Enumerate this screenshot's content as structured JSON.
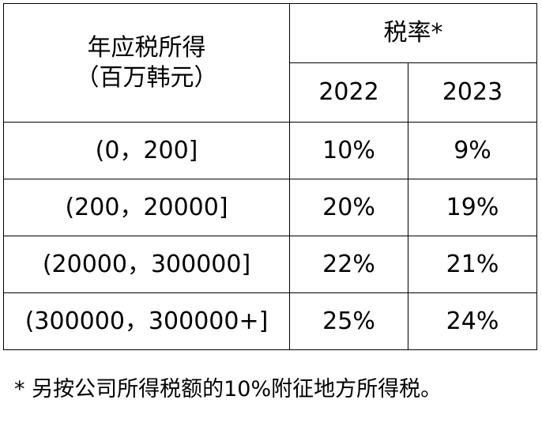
{
  "table": {
    "header": {
      "income_label": "年应税所得",
      "income_unit": "（百万韩元）",
      "rate_label": "税率*",
      "years": [
        "2022",
        "2023"
      ]
    },
    "rows": [
      {
        "bracket": "(0，200]",
        "rate_2022": "10%",
        "rate_2023": "9%"
      },
      {
        "bracket": "(200，20000]",
        "rate_2022": "20%",
        "rate_2023": "19%"
      },
      {
        "bracket": "(20000，300000]",
        "rate_2022": "22%",
        "rate_2023": "21%"
      },
      {
        "bracket": "(300000，300000+]",
        "rate_2022": "25%",
        "rate_2023": "24%"
      }
    ]
  },
  "footnote": "* 另按公司所得税额的10%附征地方所得税。"
}
